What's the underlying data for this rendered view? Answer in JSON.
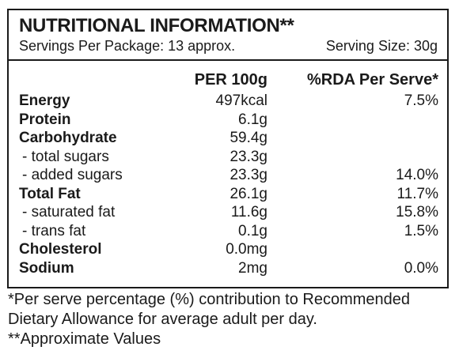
{
  "panel": {
    "title": "NUTRITIONAL INFORMATION**",
    "servings_per_package": "Servings Per Package: 13 approx.",
    "serving_size": "Serving Size: 30g",
    "column_per100": "PER 100g",
    "column_rda": "%RDA Per Serve*"
  },
  "nutrients": [
    {
      "label": "Energy",
      "per100": "497kcal",
      "rda": "7.5%",
      "level": "main"
    },
    {
      "label": "Protein",
      "per100": "6.1g",
      "rda": "",
      "level": "main"
    },
    {
      "label": "Carbohydrate",
      "per100": "59.4g",
      "rda": "",
      "level": "main"
    },
    {
      "label": "- total sugars",
      "per100": "23.3g",
      "rda": "",
      "level": "sub"
    },
    {
      "label": "- added sugars",
      "per100": "23.3g",
      "rda": "14.0%",
      "level": "sub"
    },
    {
      "label": "Total Fat",
      "per100": "26.1g",
      "rda": "11.7%",
      "level": "main"
    },
    {
      "label": "- saturated fat",
      "per100": "11.6g",
      "rda": "15.8%",
      "level": "sub"
    },
    {
      "label": "- trans fat",
      "per100": "0.1g",
      "rda": "1.5%",
      "level": "sub"
    },
    {
      "label": "Cholesterol",
      "per100": "0.0mg",
      "rda": "",
      "level": "main"
    },
    {
      "label": "Sodium",
      "per100": "2mg",
      "rda": "0.0%",
      "level": "main"
    }
  ],
  "footnotes": {
    "line1": "*Per serve percentage (%) contribution to Recommended",
    "line2": "Dietary Allowance for average adult per day.",
    "line3": "**Approximate Values"
  }
}
